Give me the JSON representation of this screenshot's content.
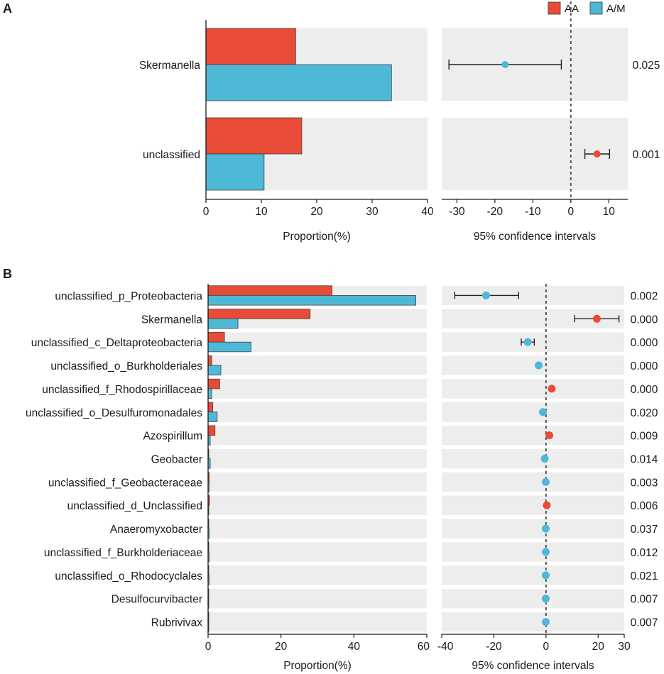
{
  "colors": {
    "aa": "#E84B37",
    "am": "#4DB9D6",
    "bg": "#EDEDED",
    "axis": "#1a1a1a"
  },
  "legend": {
    "aa": "AA",
    "am": "A/M"
  },
  "chart_data": [
    {
      "panel_label": "A",
      "type": "bar",
      "title": "",
      "categories": [
        "Skermanella",
        "unclassified"
      ],
      "series": [
        {
          "name": "AA",
          "values": [
            16.2,
            17.3
          ]
        },
        {
          "name": "A/M",
          "values": [
            33.5,
            10.5
          ]
        }
      ],
      "xlabel": "Proportion(%)",
      "xlim": [
        0,
        40
      ],
      "xticks": [
        "0",
        "10",
        "20",
        "30",
        "40"
      ],
      "ci": {
        "xlabel": "95% confidence intervals",
        "xlim": [
          -34,
          15
        ],
        "xticks": [
          "-30",
          "-20",
          "-10",
          "0",
          "10"
        ],
        "estimates": [
          -17.3,
          6.9
        ],
        "lower": [
          -32.1,
          3.7
        ],
        "upper": [
          -2.5,
          10.2
        ],
        "colors": [
          "am",
          "aa"
        ]
      },
      "pvalues": [
        "0.025",
        "0.001"
      ]
    },
    {
      "panel_label": "B",
      "type": "bar",
      "title": "",
      "categories": [
        "unclassified_p_Proteobacteria",
        "Skermanella",
        "unclassified_c_Deltaproteobacteria",
        "unclassified_o_Burkholderiales",
        "unclassified_f_Rhodospirillaceae",
        "unclassified_o_Desulfuromonadales",
        "Azospirillum",
        "Geobacter",
        "unclassified_f_Geobacteraceae",
        "unclassified_d_Unclassified",
        "Anaeromyxobacter",
        "unclassified_f_Burkholderiaceae",
        "unclassified_o_Rhodocyclales",
        "Desulfocurvibacter",
        "Rubrivivax"
      ],
      "series": [
        {
          "name": "AA",
          "values": [
            34,
            28,
            4.5,
            1.0,
            3.2,
            1.3,
            1.9,
            0.2,
            0.3,
            0.4,
            0.2,
            0.2,
            0.2,
            0.1,
            0.1
          ]
        },
        {
          "name": "A/M",
          "values": [
            57,
            8.2,
            11.8,
            3.5,
            1.0,
            2.5,
            0.6,
            0.6,
            0.3,
            0.2,
            0.3,
            0.3,
            0.3,
            0.2,
            0.2
          ]
        }
      ],
      "xlabel": "Proportion(%)",
      "xlim": [
        0,
        60
      ],
      "xticks": [
        "0",
        "20",
        "40",
        "60"
      ],
      "ci": {
        "xlabel": "95% confidence intervals",
        "xlim": [
          -40,
          30
        ],
        "xticks": [
          "-40",
          "-20",
          "0",
          "20",
          "30"
        ],
        "estimates": [
          -23,
          19.5,
          -7,
          -2.8,
          2.2,
          -1.2,
          1.3,
          -0.5,
          -0.1,
          0.3,
          -0.1,
          -0.1,
          -0.1,
          -0.1,
          -0.1
        ],
        "lower": [
          -35,
          11,
          -9.5,
          null,
          null,
          null,
          null,
          null,
          null,
          null,
          null,
          null,
          null,
          null,
          null
        ],
        "upper": [
          -10.5,
          28,
          -4.5,
          null,
          null,
          null,
          null,
          null,
          null,
          null,
          null,
          null,
          null,
          null,
          null
        ],
        "colors": [
          "am",
          "aa",
          "am",
          "am",
          "aa",
          "am",
          "aa",
          "am",
          "am",
          "aa",
          "am",
          "am",
          "am",
          "am",
          "am"
        ]
      },
      "pvalues": [
        "0.002",
        "0.000",
        "0.000",
        "0.000",
        "0.000",
        "0.020",
        "0.009",
        "0.014",
        "0.003",
        "0.006",
        "0.037",
        "0.012",
        "0.021",
        "0.007",
        "0.007"
      ]
    }
  ]
}
